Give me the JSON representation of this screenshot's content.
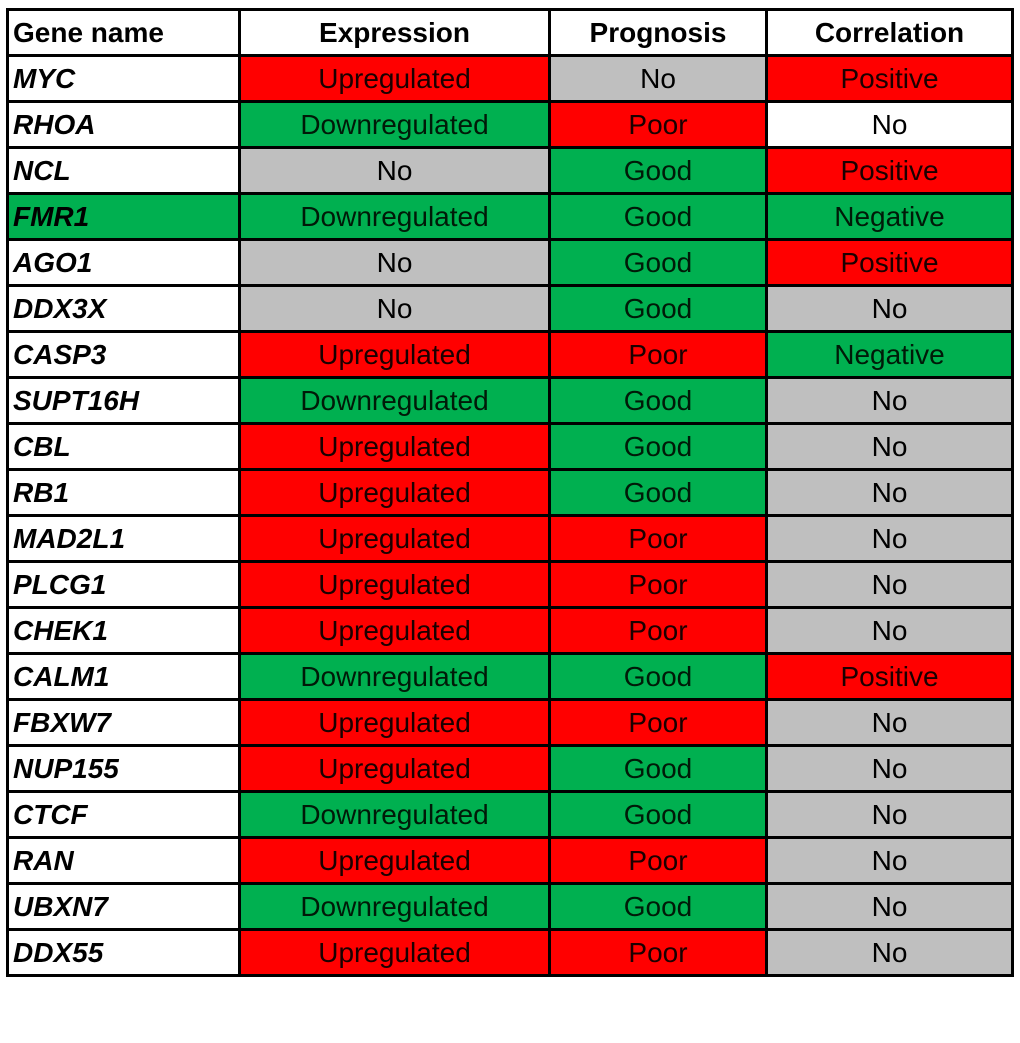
{
  "headers": [
    "Gene name",
    "Expression",
    "Prognosis",
    "Correlation"
  ],
  "colors": {
    "red": "#ff0000",
    "green": "#00b050",
    "gray": "#bfbfbf",
    "white": "#ffffff"
  },
  "rows": [
    {
      "gene": "MYC",
      "gene_color": "white",
      "expression": "Upregulated",
      "expression_color": "red",
      "prognosis": "No",
      "prognosis_color": "gray",
      "correlation": "Positive",
      "correlation_color": "red"
    },
    {
      "gene": "RHOA",
      "gene_color": "white",
      "expression": "Downregulated",
      "expression_color": "green",
      "prognosis": "Poor",
      "prognosis_color": "red",
      "correlation": "No",
      "correlation_color": "white"
    },
    {
      "gene": "NCL",
      "gene_color": "white",
      "expression": "No",
      "expression_color": "gray",
      "prognosis": "Good",
      "prognosis_color": "green",
      "correlation": "Positive",
      "correlation_color": "red"
    },
    {
      "gene": "FMR1",
      "gene_color": "green",
      "expression": "Downregulated",
      "expression_color": "green",
      "prognosis": "Good",
      "prognosis_color": "green",
      "correlation": "Negative",
      "correlation_color": "green"
    },
    {
      "gene": "AGO1",
      "gene_color": "white",
      "expression": "No",
      "expression_color": "gray",
      "prognosis": "Good",
      "prognosis_color": "green",
      "correlation": "Positive",
      "correlation_color": "red"
    },
    {
      "gene": "DDX3X",
      "gene_color": "white",
      "expression": "No",
      "expression_color": "gray",
      "prognosis": "Good",
      "prognosis_color": "green",
      "correlation": "No",
      "correlation_color": "gray"
    },
    {
      "gene": "CASP3",
      "gene_color": "white",
      "expression": "Upregulated",
      "expression_color": "red",
      "prognosis": "Poor",
      "prognosis_color": "red",
      "correlation": "Negative",
      "correlation_color": "green"
    },
    {
      "gene": "SUPT16H",
      "gene_color": "white",
      "expression": "Downregulated",
      "expression_color": "green",
      "prognosis": "Good",
      "prognosis_color": "green",
      "correlation": "No",
      "correlation_color": "gray"
    },
    {
      "gene": "CBL",
      "gene_color": "white",
      "expression": "Upregulated",
      "expression_color": "red",
      "prognosis": "Good",
      "prognosis_color": "green",
      "correlation": "No",
      "correlation_color": "gray"
    },
    {
      "gene": "RB1",
      "gene_color": "white",
      "expression": "Upregulated",
      "expression_color": "red",
      "prognosis": "Good",
      "prognosis_color": "green",
      "correlation": "No",
      "correlation_color": "gray"
    },
    {
      "gene": "MAD2L1",
      "gene_color": "white",
      "expression": "Upregulated",
      "expression_color": "red",
      "prognosis": "Poor",
      "prognosis_color": "red",
      "correlation": "No",
      "correlation_color": "gray"
    },
    {
      "gene": "PLCG1",
      "gene_color": "white",
      "expression": "Upregulated",
      "expression_color": "red",
      "prognosis": "Poor",
      "prognosis_color": "red",
      "correlation": "No",
      "correlation_color": "gray"
    },
    {
      "gene": "CHEK1",
      "gene_color": "white",
      "expression": "Upregulated",
      "expression_color": "red",
      "prognosis": "Poor",
      "prognosis_color": "red",
      "correlation": "No",
      "correlation_color": "gray"
    },
    {
      "gene": "CALM1",
      "gene_color": "white",
      "expression": "Downregulated",
      "expression_color": "green",
      "prognosis": "Good",
      "prognosis_color": "green",
      "correlation": "Positive",
      "correlation_color": "red"
    },
    {
      "gene": "FBXW7",
      "gene_color": "white",
      "expression": "Upregulated",
      "expression_color": "red",
      "prognosis": "Poor",
      "prognosis_color": "red",
      "correlation": "No",
      "correlation_color": "gray"
    },
    {
      "gene": "NUP155",
      "gene_color": "white",
      "expression": "Upregulated",
      "expression_color": "red",
      "prognosis": "Good",
      "prognosis_color": "green",
      "correlation": "No",
      "correlation_color": "gray"
    },
    {
      "gene": "CTCF",
      "gene_color": "white",
      "expression": "Downregulated",
      "expression_color": "green",
      "prognosis": "Good",
      "prognosis_color": "green",
      "correlation": "No",
      "correlation_color": "gray"
    },
    {
      "gene": "RAN",
      "gene_color": "white",
      "expression": "Upregulated",
      "expression_color": "red",
      "prognosis": "Poor",
      "prognosis_color": "red",
      "correlation": "No",
      "correlation_color": "gray"
    },
    {
      "gene": "UBXN7",
      "gene_color": "white",
      "expression": "Downregulated",
      "expression_color": "green",
      "prognosis": "Good",
      "prognosis_color": "green",
      "correlation": "No",
      "correlation_color": "gray"
    },
    {
      "gene": "DDX55",
      "gene_color": "white",
      "expression": "Upregulated",
      "expression_color": "red",
      "prognosis": "Poor",
      "prognosis_color": "red",
      "correlation": "No",
      "correlation_color": "gray"
    }
  ]
}
